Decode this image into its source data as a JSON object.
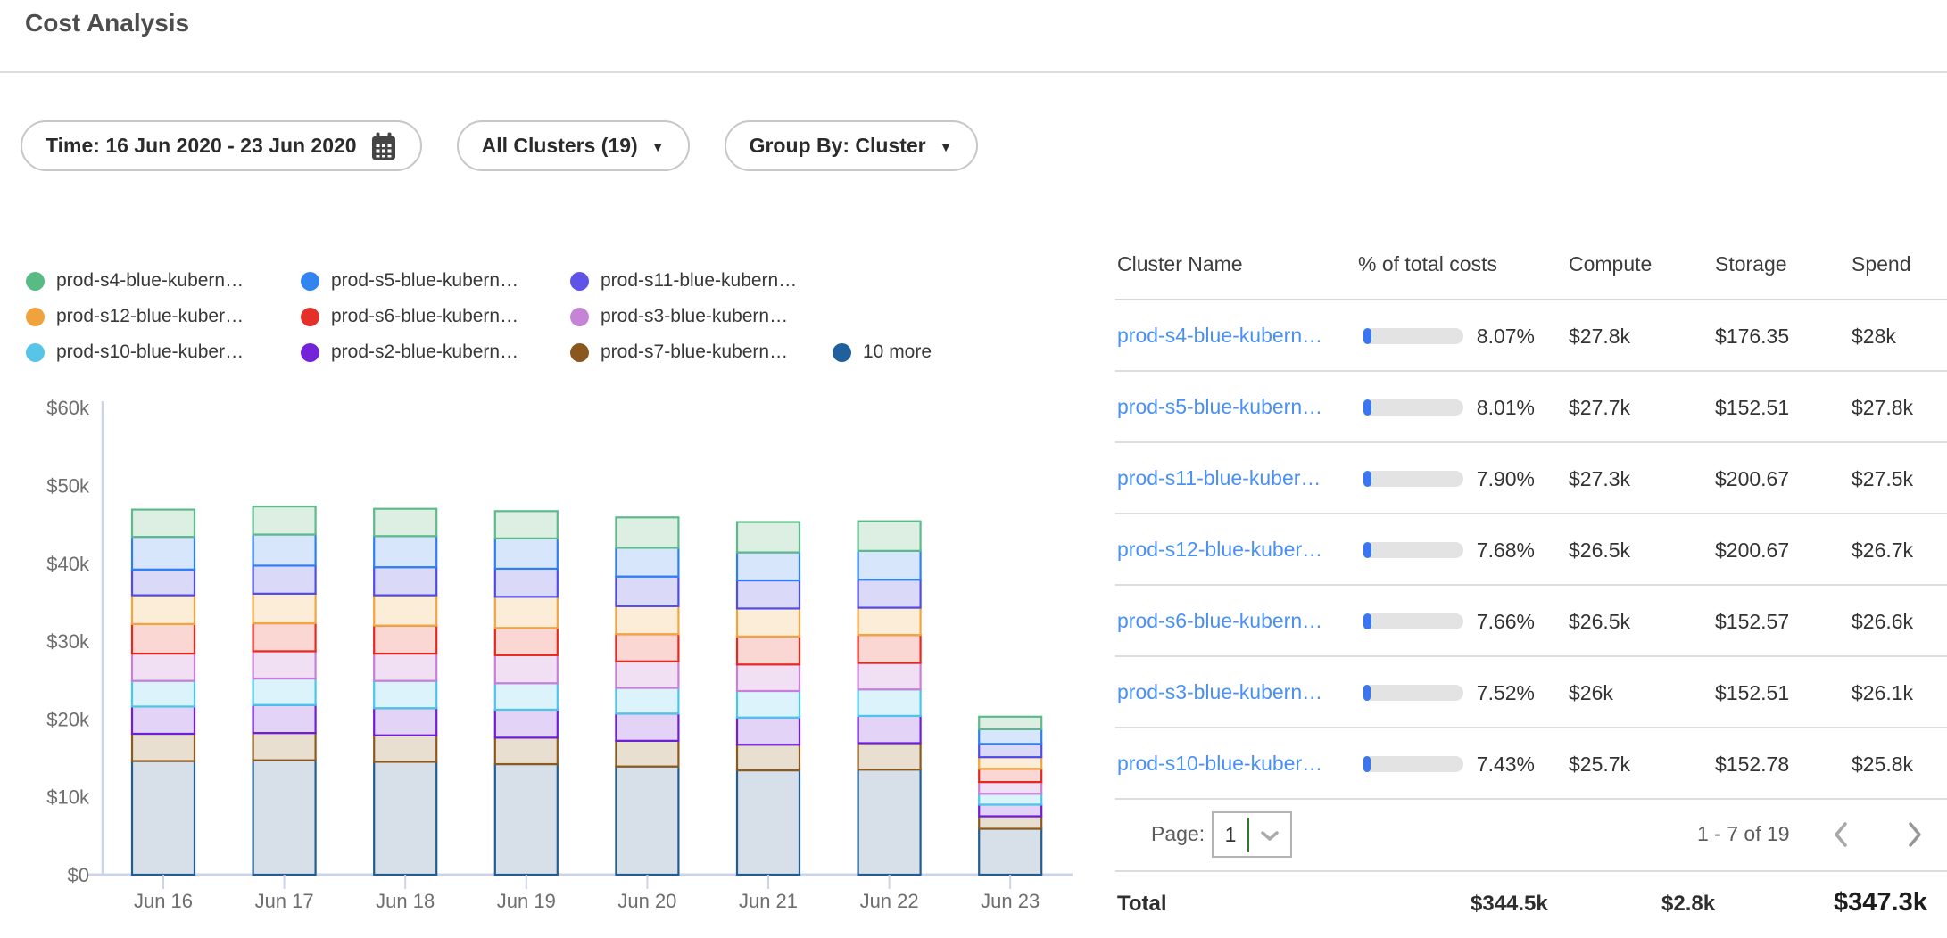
{
  "header": {
    "title": "Cost Analysis"
  },
  "filters": {
    "time": {
      "label": "Time: 16 Jun 2020 - 23 Jun 2020",
      "icon": "calendar-icon"
    },
    "clusters": {
      "label": "All Clusters (19)",
      "icon": "caret-down-icon"
    },
    "group_by": {
      "label": "Group By: Cluster",
      "icon": "caret-down-icon"
    }
  },
  "legend": {
    "items": [
      {
        "label": "prod-s4-blue-kubern…",
        "color": "#57bb83"
      },
      {
        "label": "prod-s5-blue-kubern…",
        "color": "#3285f0"
      },
      {
        "label": "prod-s11-blue-kubern…",
        "color": "#6053e8"
      },
      {
        "label": "prod-s12-blue-kuber…",
        "color": "#f0a23d"
      },
      {
        "label": "prod-s6-blue-kubern…",
        "color": "#e3302b"
      },
      {
        "label": "prod-s3-blue-kubern…",
        "color": "#c584d6"
      },
      {
        "label": "prod-s10-blue-kuber…",
        "color": "#58c5e8"
      },
      {
        "label": "prod-s2-blue-kubern…",
        "color": "#7324d8"
      },
      {
        "label": "prod-s7-blue-kubern…",
        "color": "#8a571e"
      },
      {
        "label": "10 more",
        "color": "#20609c"
      }
    ]
  },
  "chart_data": {
    "type": "bar",
    "stacked": true,
    "title": "",
    "xlabel": "",
    "ylabel": "",
    "unit": "USD (thousands)",
    "ylim": [
      0,
      60
    ],
    "grid": false,
    "legend_position": "top",
    "y_ticks": [
      "$0",
      "$10k",
      "$20k",
      "$30k",
      "$40k",
      "$50k",
      "$60k"
    ],
    "categories": [
      "Jun 16",
      "Jun 17",
      "Jun 18",
      "Jun 19",
      "Jun 20",
      "Jun 21",
      "Jun 22",
      "Jun 23"
    ],
    "series": [
      {
        "name": "10 more",
        "stroke": "#215d92",
        "fill": "#d7dfe9",
        "values": [
          14.6,
          14.7,
          14.5,
          14.2,
          13.9,
          13.4,
          13.5,
          5.9
        ]
      },
      {
        "name": "prod-s7-blue-kubern…",
        "stroke": "#8d5a1d",
        "fill": "#e8dfd1",
        "values": [
          3.5,
          3.5,
          3.4,
          3.4,
          3.3,
          3.3,
          3.4,
          1.6
        ]
      },
      {
        "name": "prod-s2-blue-kubern…",
        "stroke": "#6d1ed6",
        "fill": "#e3d3f7",
        "values": [
          3.5,
          3.6,
          3.5,
          3.6,
          3.5,
          3.5,
          3.5,
          1.5
        ]
      },
      {
        "name": "prod-s10-blue-kuber…",
        "stroke": "#49c6ea",
        "fill": "#ddf3fb",
        "values": [
          3.3,
          3.4,
          3.5,
          3.4,
          3.3,
          3.4,
          3.4,
          1.4
        ]
      },
      {
        "name": "prod-s3-blue-kubern…",
        "stroke": "#c77fd8",
        "fill": "#f1e0f4",
        "values": [
          3.5,
          3.5,
          3.5,
          3.6,
          3.4,
          3.4,
          3.4,
          1.5
        ]
      },
      {
        "name": "prod-s6-blue-kubern…",
        "stroke": "#e8271f",
        "fill": "#fad7d2",
        "values": [
          3.8,
          3.6,
          3.6,
          3.5,
          3.5,
          3.6,
          3.6,
          1.7
        ]
      },
      {
        "name": "prod-s12-blue-kuber…",
        "stroke": "#f2a43e",
        "fill": "#fcedd8",
        "values": [
          3.7,
          3.8,
          3.9,
          4.0,
          3.6,
          3.6,
          3.5,
          1.5
        ]
      },
      {
        "name": "prod-s11-blue-kubern…",
        "stroke": "#4f4ce8",
        "fill": "#dbd9f8",
        "values": [
          3.3,
          3.6,
          3.6,
          3.6,
          3.8,
          3.6,
          3.6,
          1.7
        ]
      },
      {
        "name": "prod-s5-blue-kubern…",
        "stroke": "#2e7ff2",
        "fill": "#d8e6fb",
        "values": [
          4.2,
          4.0,
          4.0,
          3.9,
          3.7,
          3.6,
          3.7,
          1.9
        ]
      },
      {
        "name": "prod-s4-blue-kubern…",
        "stroke": "#5eba8a",
        "fill": "#ddeee3",
        "values": [
          3.5,
          3.6,
          3.5,
          3.5,
          3.9,
          3.9,
          3.8,
          1.6
        ]
      }
    ]
  },
  "table": {
    "columns": [
      "Cluster Name",
      "% of total costs",
      "Compute",
      "Storage",
      "Spend"
    ],
    "rows": [
      {
        "name": "prod-s4-blue-kubern…",
        "pct": "8.07%",
        "pct_value": 8.07,
        "compute": "$27.8k",
        "storage": "$176.35",
        "spend": "$28k"
      },
      {
        "name": "prod-s5-blue-kubern…",
        "pct": "8.01%",
        "pct_value": 8.01,
        "compute": "$27.7k",
        "storage": "$152.51",
        "spend": "$27.8k"
      },
      {
        "name": "prod-s11-blue-kuber…",
        "pct": "7.90%",
        "pct_value": 7.9,
        "compute": "$27.3k",
        "storage": "$200.67",
        "spend": "$27.5k"
      },
      {
        "name": "prod-s12-blue-kuber…",
        "pct": "7.68%",
        "pct_value": 7.68,
        "compute": "$26.5k",
        "storage": "$200.67",
        "spend": "$26.7k"
      },
      {
        "name": "prod-s6-blue-kubern…",
        "pct": "7.66%",
        "pct_value": 7.66,
        "compute": "$26.5k",
        "storage": "$152.57",
        "spend": "$26.6k"
      },
      {
        "name": "prod-s3-blue-kubern…",
        "pct": "7.52%",
        "pct_value": 7.52,
        "compute": "$26k",
        "storage": "$152.51",
        "spend": "$26.1k"
      },
      {
        "name": "prod-s10-blue-kuber…",
        "pct": "7.43%",
        "pct_value": 7.43,
        "compute": "$25.7k",
        "storage": "$152.78",
        "spend": "$25.8k"
      }
    ],
    "pagination": {
      "page_label": "Page:",
      "page_value": "1",
      "range": "1 - 7 of 19"
    },
    "total": {
      "label": "Total",
      "compute": "$344.5k",
      "storage": "$2.8k",
      "spend": "$347.3k"
    }
  },
  "colors": {
    "link": "#4a90f4",
    "progress_track": "#e3e3e3",
    "progress_fill": "#3b76f0",
    "axis": "#ccd5e8",
    "divider": "#dcdcdc",
    "select_divider_green": "#2a7a2a"
  }
}
